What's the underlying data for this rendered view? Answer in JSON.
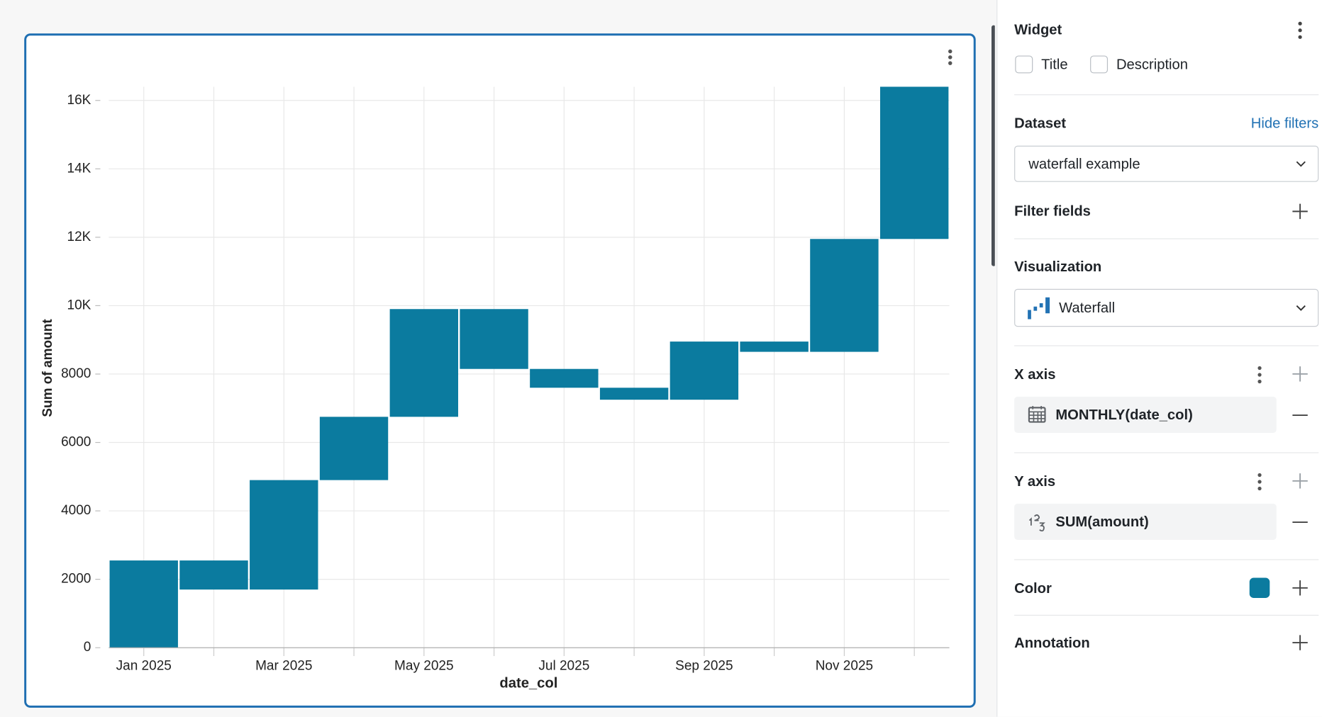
{
  "chart_data": {
    "type": "waterfall",
    "color": "#0b7b9f",
    "categories": [
      "Jan 2025",
      null,
      "Mar 2025",
      null,
      "May 2025",
      null,
      "Jul 2025",
      null,
      "Sep 2025",
      null,
      "Nov 2025",
      null
    ],
    "values": [
      2550,
      -850,
      3200,
      1850,
      3150,
      -1750,
      -550,
      -350,
      1700,
      -300,
      3300,
      4450
    ],
    "x_label": "date_col",
    "y_label": "Sum of amount",
    "ylim": [
      0,
      16400
    ],
    "yticks": [
      0,
      2000,
      4000,
      6000,
      8000,
      {
        "value": 10000,
        "label": "10K"
      },
      {
        "value": 12000,
        "label": "12K"
      },
      {
        "value": 14000,
        "label": "14K"
      },
      {
        "value": 16000,
        "label": "16K"
      }
    ],
    "grid": true
  },
  "panel": {
    "widget": "Widget",
    "title_option": "Title",
    "description_option": "Description",
    "dataset_label": "Dataset",
    "hide_filters": "Hide filters",
    "dataset": "waterfall example",
    "filter_fields": "Filter fields",
    "visualization_label": "Visualization",
    "visualization": "Waterfall",
    "x_axis_label": "X axis",
    "x_axis_field": "MONTHLY(date_col)",
    "y_axis_label": "Y axis",
    "y_axis_field": "SUM(amount)",
    "color_label": "Color",
    "annotation_label": "Annotation"
  }
}
